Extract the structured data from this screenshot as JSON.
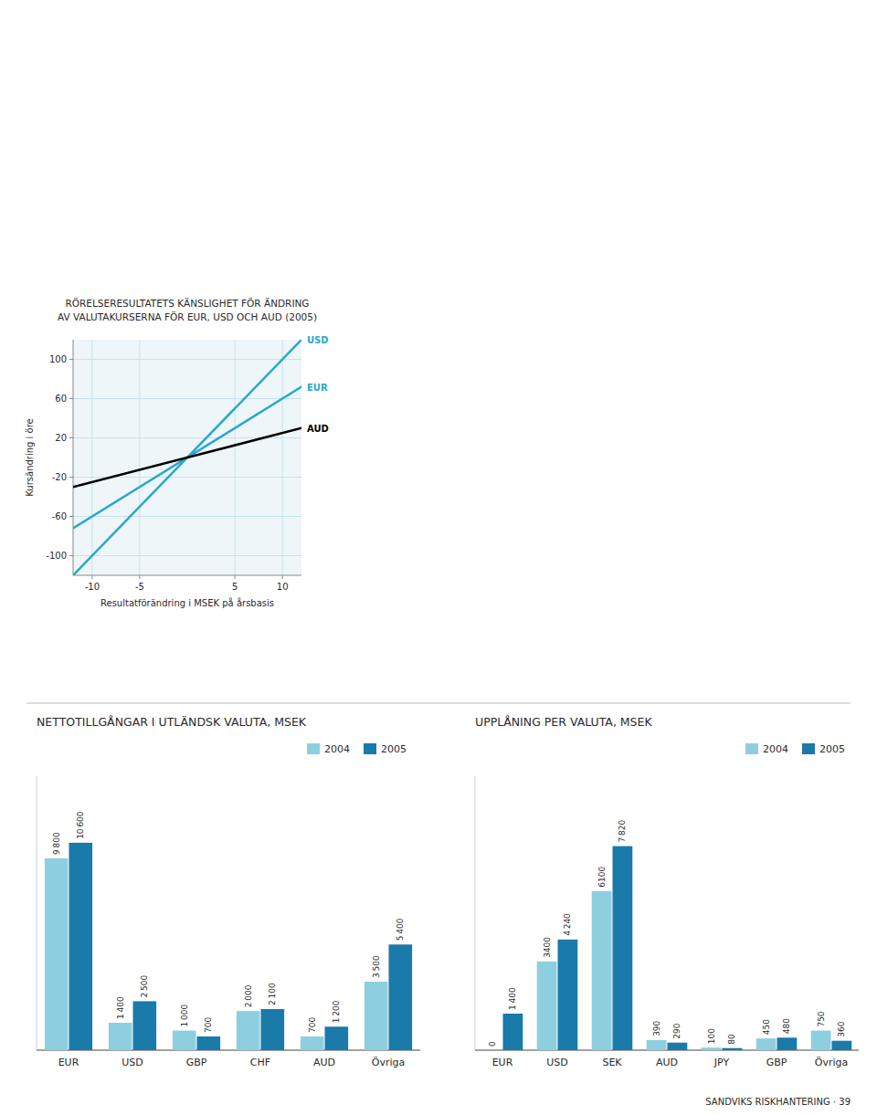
{
  "chart_data": [
    {
      "type": "line",
      "title": "RÖRELSERESULTATETS KÄNSLIGHET FÖR ÄNDRING",
      "subtitle": "AV VALUTAKURSERNA FÖR EUR, USD OCH AUD (2005)",
      "x_label": "Resultatförändring i MSEK på årsbasis",
      "y_label": "Kursändring i öre",
      "x": [
        -12,
        12
      ],
      "series": [
        {
          "name": "USD",
          "color": "#29a8c8",
          "values": [
            -120,
            120
          ]
        },
        {
          "name": "EUR",
          "color": "#29a8c8",
          "values": [
            -72,
            72
          ]
        },
        {
          "name": "AUD",
          "color": "#000000",
          "values": [
            -30,
            30
          ]
        }
      ],
      "xlim": [
        -12,
        12
      ],
      "ylim": [
        -120,
        120
      ],
      "xticks": [
        -10,
        -5,
        5,
        10
      ],
      "yticks": [
        -100,
        -60,
        -20,
        20,
        60,
        100
      ],
      "grid": true
    },
    {
      "type": "bar",
      "title": "NETTOTILLGÅNGAR I UTLÄNDSK VALUTA, MSEK",
      "categories": [
        "EUR",
        "USD",
        "GBP",
        "CHF",
        "AUD",
        "Övriga"
      ],
      "series": [
        {
          "name": "2004",
          "color": "#8ecfdf",
          "values": [
            9800,
            1400,
            1000,
            2000,
            700,
            3500
          ],
          "value_labels": [
            "9 800",
            "1 400",
            "1 000",
            "2 000",
            "700",
            "3 500"
          ]
        },
        {
          "name": "2005",
          "color": "#1a7aaa",
          "values": [
            10600,
            2500,
            700,
            2100,
            1200,
            5400
          ],
          "value_labels": [
            "10 600",
            "2 500",
            "700",
            "2 100",
            "1 200",
            "5 400"
          ]
        }
      ],
      "ylim": [
        0,
        14000
      ],
      "legend": "top-right",
      "data_labels": true,
      "tick_labels": "x",
      "grid": false
    },
    {
      "type": "bar",
      "title": "UPPLÅNING PER VALUTA, MSEK",
      "categories": [
        "EUR",
        "USD",
        "SEK",
        "AUD",
        "JPY",
        "GBP",
        "Övriga"
      ],
      "series": [
        {
          "name": "2004",
          "color": "#8ecfdf",
          "values": [
            0,
            3400,
            6100,
            390,
            100,
            450,
            750
          ]
        },
        {
          "name": "2005",
          "color": "#1a7aaa",
          "values": [
            1400,
            4240,
            7820,
            290,
            80,
            480,
            360
          ],
          "value_labels": [
            "1 400",
            "4 240",
            "7 820",
            "290",
            "80",
            "480",
            "360"
          ]
        }
      ],
      "ylim": [
        0,
        10500
      ],
      "legend": "top-right",
      "data_labels": true,
      "tick_labels": "x",
      "grid": false
    }
  ],
  "footer": "SANDVIKS RISKHANTERING · 39"
}
